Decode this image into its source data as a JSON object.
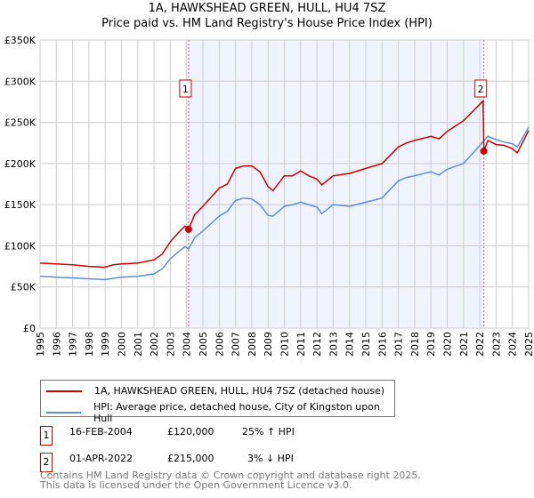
{
  "chart_data": {
    "type": "line",
    "title": "1A, HAWKSHEAD GREEN, HULL, HU4 7SZ",
    "subtitle": "Price paid vs. HM Land Registry's House Price Index (HPI)",
    "xlim": [
      1995,
      2025
    ],
    "ylim": [
      0,
      350000
    ],
    "x_ticks": [
      "1995",
      "1996",
      "1997",
      "1998",
      "1999",
      "2000",
      "2001",
      "2002",
      "2003",
      "2004",
      "2005",
      "2006",
      "2007",
      "2008",
      "2009",
      "2010",
      "2011",
      "2012",
      "2013",
      "2014",
      "2015",
      "2016",
      "2017",
      "2018",
      "2019",
      "2020",
      "2021",
      "2022",
      "2023",
      "2024",
      "2025"
    ],
    "y_ticks": [
      "£0",
      "£50K",
      "£100K",
      "£150K",
      "£200K",
      "£250K",
      "£300K",
      "£350K"
    ],
    "y_tick_values": [
      0,
      50000,
      100000,
      150000,
      200000,
      250000,
      300000,
      350000
    ],
    "grid": true,
    "shaded_range": [
      2004.12,
      2022.25
    ],
    "series": [
      {
        "name": "1A, HAWKSHEAD GREEN, HULL, HU4 7SZ (detached house)",
        "color": "#cc0000",
        "x": [
          1995,
          1996,
          1997,
          1998,
          1999,
          1999.5,
          2000,
          2001,
          2002,
          2002.5,
          2003,
          2003.5,
          2003.9,
          2004.12,
          2004.5,
          2005,
          2006,
          2006.5,
          2007,
          2007.5,
          2008,
          2008.5,
          2009,
          2009.3,
          2010,
          2010.5,
          2011,
          2011.5,
          2012,
          2012.3,
          2013,
          2014,
          2015,
          2016,
          2017,
          2017.5,
          2018,
          2019,
          2019.5,
          2020,
          2021,
          2021.5,
          2022,
          2022.2,
          2022.25,
          2022.5,
          2023,
          2023.5,
          2024,
          2024.3,
          2025
        ],
        "y": [
          79000,
          78000,
          77000,
          75000,
          74000,
          77000,
          78000,
          79000,
          83000,
          90000,
          105000,
          116000,
          124000,
          120000,
          138000,
          148000,
          170000,
          175000,
          194000,
          197000,
          197000,
          190000,
          172000,
          167000,
          185000,
          185000,
          191000,
          185000,
          181000,
          174000,
          185000,
          188000,
          194000,
          200000,
          220000,
          225000,
          228000,
          233000,
          230000,
          239000,
          252000,
          262000,
          272000,
          276000,
          215000,
          228000,
          223000,
          222000,
          218000,
          213000,
          240000
        ]
      },
      {
        "name": "HPI: Average price, detached house, City of Kingston upon Hull",
        "color": "#5b8fd0",
        "x": [
          1995,
          1996,
          1997,
          1998,
          1999,
          2000,
          2001,
          2002,
          2002.5,
          2003,
          2003.5,
          2003.9,
          2004.12,
          2004.5,
          2005,
          2006,
          2006.5,
          2007,
          2007.5,
          2008,
          2008.5,
          2009,
          2009.3,
          2010,
          2010.5,
          2011,
          2011.5,
          2012,
          2012.3,
          2013,
          2014,
          2015,
          2016,
          2017,
          2017.5,
          2018,
          2019,
          2019.5,
          2020,
          2021,
          2022,
          2022.5,
          2023,
          2023.5,
          2024,
          2024.3,
          2025
        ],
        "y": [
          63000,
          62000,
          61000,
          60000,
          59000,
          62000,
          63000,
          66000,
          72000,
          84000,
          93000,
          99000,
          96000,
          110000,
          118000,
          136000,
          142000,
          155000,
          158000,
          157000,
          150000,
          137000,
          136000,
          148000,
          150000,
          153000,
          150000,
          147000,
          139000,
          150000,
          148000,
          153000,
          158000,
          179000,
          183000,
          185000,
          190000,
          186000,
          193000,
          200000,
          222000,
          233000,
          229000,
          226000,
          224000,
          220000,
          244000
        ]
      }
    ],
    "annotations": [
      {
        "label": "1",
        "x": 2004.12,
        "y": 120000
      },
      {
        "label": "2",
        "x": 2022.25,
        "y": 215000
      }
    ]
  },
  "legend": {
    "items": [
      "1A, HAWKSHEAD GREEN, HULL, HU4 7SZ (detached house)",
      "HPI: Average price, detached house, City of Kingston upon Hull"
    ]
  },
  "sales": [
    {
      "num": "1",
      "date": "16-FEB-2004",
      "price": "£120,000",
      "hpi": "25% ↑ HPI"
    },
    {
      "num": "2",
      "date": "01-APR-2022",
      "price": "£215,000",
      "hpi": "3% ↓ HPI"
    }
  ],
  "footer": {
    "line1": "Contains HM Land Registry data © Crown copyright and database right 2025.",
    "line2": "This data is licensed under the Open Government Licence v3.0."
  }
}
